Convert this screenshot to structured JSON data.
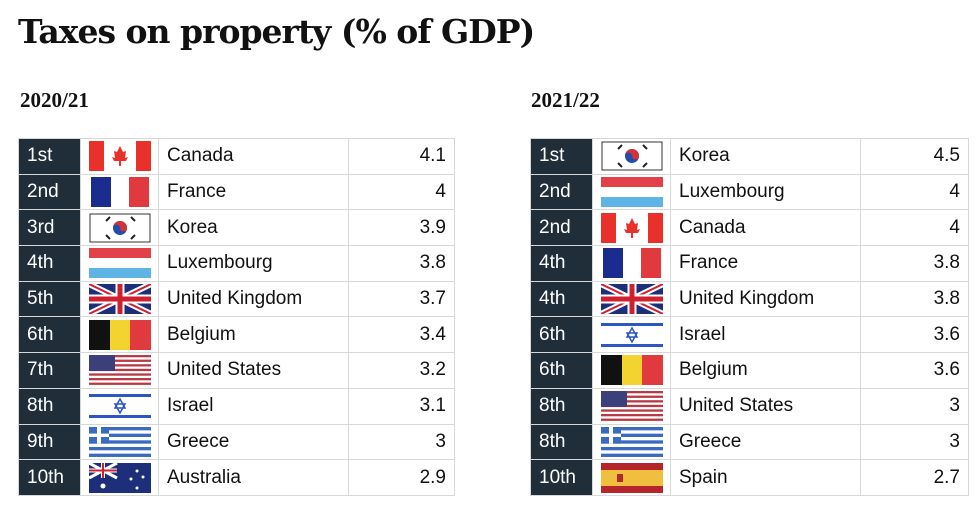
{
  "title": "Taxes on property (% of GDP)",
  "tables": [
    {
      "heading": "2020/21",
      "rows": [
        {
          "rank": "1st",
          "flag": "canada-flag",
          "country": "Canada",
          "value": "4.1"
        },
        {
          "rank": "2nd",
          "flag": "france-flag",
          "country": "France",
          "value": "4"
        },
        {
          "rank": "3rd",
          "flag": "korea-flag",
          "country": "Korea",
          "value": "3.9"
        },
        {
          "rank": "4th",
          "flag": "luxembourg-flag",
          "country": "Luxembourg",
          "value": "3.8"
        },
        {
          "rank": "5th",
          "flag": "uk-flag",
          "country": "United Kingdom",
          "value": "3.7"
        },
        {
          "rank": "6th",
          "flag": "belgium-flag",
          "country": "Belgium",
          "value": "3.4"
        },
        {
          "rank": "7th",
          "flag": "us-flag",
          "country": "United States",
          "value": "3.2"
        },
        {
          "rank": "8th",
          "flag": "israel-flag",
          "country": "Israel",
          "value": "3.1"
        },
        {
          "rank": "9th",
          "flag": "greece-flag",
          "country": "Greece",
          "value": "3"
        },
        {
          "rank": "10th",
          "flag": "australia-flag",
          "country": "Australia",
          "value": "2.9"
        }
      ]
    },
    {
      "heading": "2021/22",
      "rows": [
        {
          "rank": "1st",
          "flag": "korea-flag",
          "country": "Korea",
          "value": "4.5"
        },
        {
          "rank": "2nd",
          "flag": "luxembourg-flag",
          "country": "Luxembourg",
          "value": "4"
        },
        {
          "rank": "2nd",
          "flag": "canada-flag",
          "country": "Canada",
          "value": "4"
        },
        {
          "rank": "4th",
          "flag": "france-flag",
          "country": "France",
          "value": "3.8"
        },
        {
          "rank": "4th",
          "flag": "uk-flag",
          "country": "United Kingdom",
          "value": "3.8"
        },
        {
          "rank": "6th",
          "flag": "israel-flag",
          "country": "Israel",
          "value": "3.6"
        },
        {
          "rank": "6th",
          "flag": "belgium-flag",
          "country": "Belgium",
          "value": "3.6"
        },
        {
          "rank": "8th",
          "flag": "us-flag",
          "country": "United States",
          "value": "3"
        },
        {
          "rank": "8th",
          "flag": "greece-flag",
          "country": "Greece",
          "value": "3"
        },
        {
          "rank": "10th",
          "flag": "spain-flag",
          "country": "Spain",
          "value": "2.7"
        }
      ]
    }
  ]
}
